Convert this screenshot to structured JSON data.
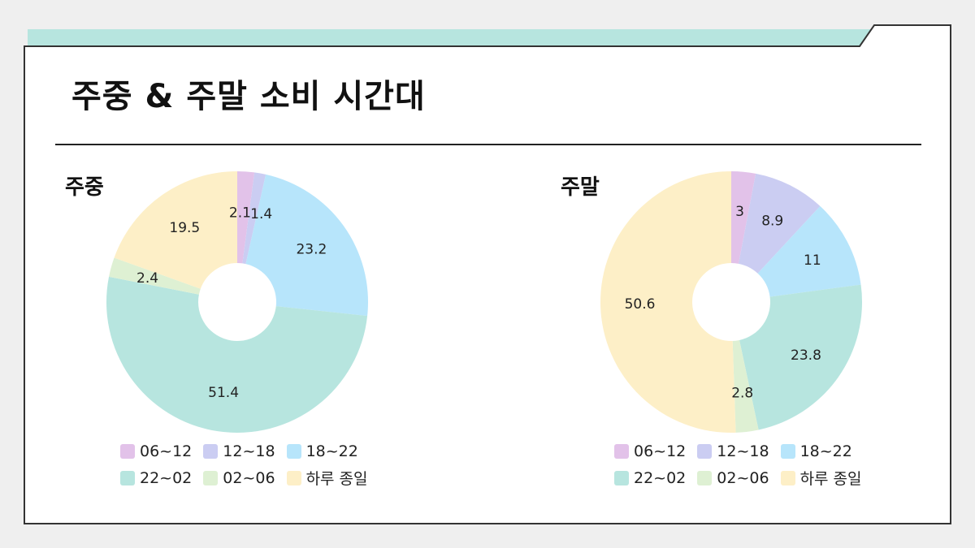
{
  "page": {
    "title": "주중 & 주말 소비 시간대"
  },
  "colors": {
    "accent_tab": "#b7e5df",
    "frame_border": "#333333"
  },
  "categories": [
    "06~12",
    "12~18",
    "18~22",
    "22~02",
    "02~06",
    "하루 종일"
  ],
  "category_colors": [
    "#e2c2e9",
    "#cbcdf2",
    "#b7e5fb",
    "#b7e5df",
    "#def0d3",
    "#fdefc7"
  ],
  "chart_data": [
    {
      "type": "pie",
      "title": "주중",
      "categories": [
        "06~12",
        "12~18",
        "18~22",
        "22~02",
        "02~06",
        "하루 종일"
      ],
      "values": [
        2.1,
        1.4,
        23.2,
        51.4,
        2.4,
        19.5
      ],
      "value_labels": [
        "2.1",
        "1.4",
        "23.2",
        "51.4",
        "2.4",
        "19.5"
      ],
      "legend": "bottom",
      "donut": true
    },
    {
      "type": "pie",
      "title": "주말",
      "categories": [
        "06~12",
        "12~18",
        "18~22",
        "22~02",
        "02~06",
        "하루 종일"
      ],
      "values": [
        3,
        8.9,
        11,
        23.8,
        2.8,
        50.6
      ],
      "value_labels": [
        "3",
        "8.9",
        "11",
        "23.8",
        "2.8",
        "50.6"
      ],
      "legend": "bottom",
      "donut": true
    }
  ]
}
